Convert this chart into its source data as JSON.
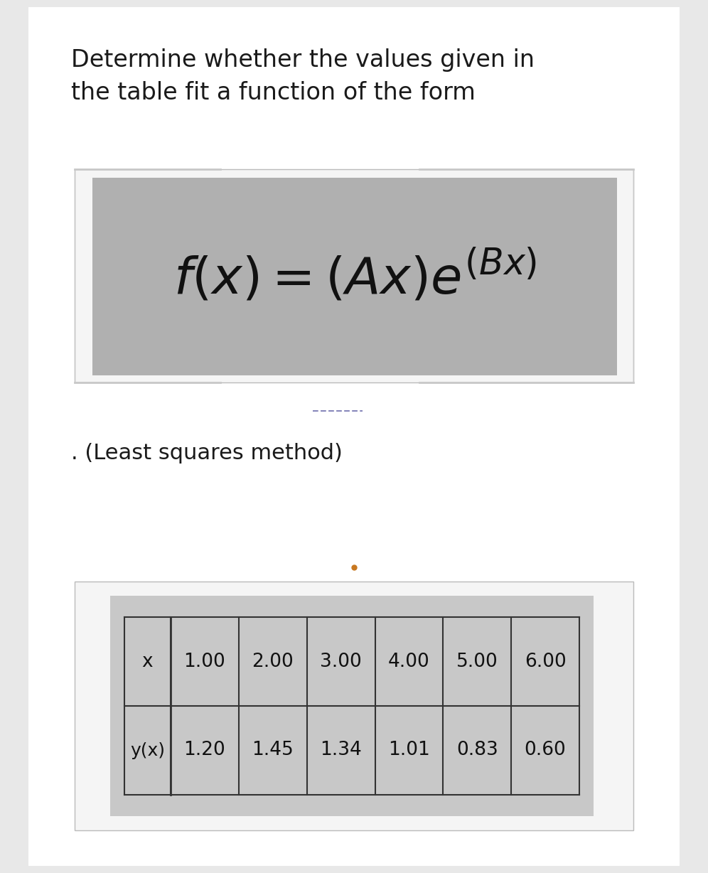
{
  "title_line1": "Determine whether the values given in",
  "title_line2": "the table fit a function of the form",
  "subtitle": ". (Least squares method)",
  "x_values": [
    "1.00",
    "2.00",
    "3.00",
    "4.00",
    "5.00",
    "6.00"
  ],
  "y_values": [
    "1.20",
    "1.45",
    "1.34",
    "1.01",
    "0.83",
    "0.60"
  ],
  "row_labels": [
    "x",
    "y(x)"
  ],
  "bg_color": "#e8e8e8",
  "page_color": "#ffffff",
  "formula_image_bg": "#b0b0b0",
  "formula_outer_bg": "#f5f5f5",
  "table_image_bg": "#c8c8c8",
  "table_outer_bg": "#f5f5f5",
  "title_fontsize": 24,
  "subtitle_fontsize": 22,
  "table_fontsize": 19,
  "dot_color": "#c87820",
  "line_color": "#c8c8c8",
  "dash_color": "#8888bb"
}
